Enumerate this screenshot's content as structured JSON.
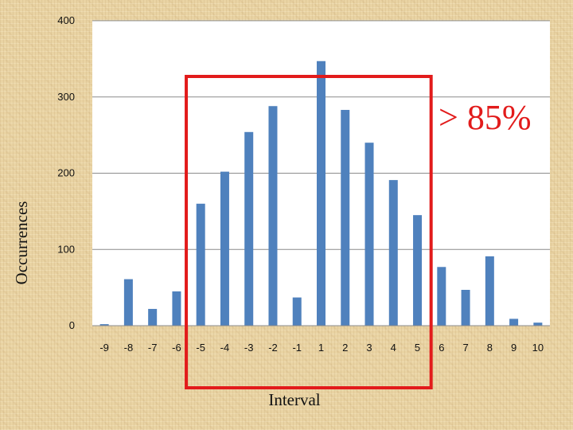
{
  "chart_data": {
    "type": "bar",
    "categories": [
      "-9",
      "-8",
      "-7",
      "-6",
      "-5",
      "-4",
      "-3",
      "-2",
      "-1",
      "1",
      "2",
      "3",
      "4",
      "5",
      "6",
      "7",
      "8",
      "9",
      "10"
    ],
    "series": [
      {
        "values": [
          2,
          61,
          22,
          45,
          160,
          202,
          254,
          288,
          37,
          347,
          283,
          240,
          191,
          145,
          77,
          47,
          91,
          9,
          4
        ]
      }
    ],
    "title": "",
    "xlabel": "Interval",
    "ylabel": "Occurrences",
    "ylim": [
      0,
      400
    ],
    "yticks": [
      "0",
      "100",
      "200",
      "300",
      "400"
    ],
    "grid": true,
    "bar_color": "#4f81bd",
    "highlight": {
      "from_category": "-5",
      "to_category": "5",
      "label": "> 85%",
      "color": "#e21b1b"
    }
  }
}
